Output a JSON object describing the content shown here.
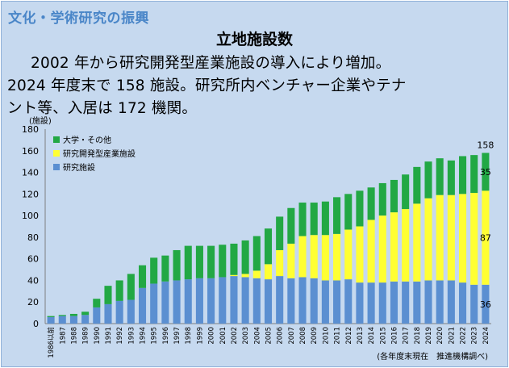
{
  "header": {
    "section_title": "文化・学術研究の振興",
    "title": "立地施設数"
  },
  "description": {
    "line1": "2002 年から研究開発型産業施設の導入により増加。",
    "line2": "2024 年度末で 158 施設。研究所内ベンチャー企業やテナ",
    "line3": "ント等、入居は 172 機関。"
  },
  "chart_data": {
    "type": "bar",
    "stacked": true,
    "title": "",
    "ylabel": "(施設)",
    "xlabel": "",
    "ylim": [
      0,
      180
    ],
    "yticks": [
      0,
      20,
      40,
      60,
      80,
      100,
      120,
      140,
      160,
      180
    ],
    "categories": [
      "1986以前",
      "1987",
      "1988",
      "1989",
      "1990",
      "1991",
      "1992",
      "1993",
      "1994",
      "1995",
      "1996",
      "1997",
      "1998",
      "1999",
      "2000",
      "2001",
      "2002",
      "2003",
      "2004",
      "2005",
      "2006",
      "2007",
      "2008",
      "2009",
      "2010",
      "2011",
      "2012",
      "2013",
      "2014",
      "2015",
      "2016",
      "2017",
      "2018",
      "2019",
      "2020",
      "2021",
      "2022",
      "2023",
      "2024"
    ],
    "series": [
      {
        "name": "研究施設",
        "color": "#5b8fd1",
        "values": [
          6,
          7,
          7,
          8,
          15,
          18,
          21,
          22,
          33,
          37,
          39,
          40,
          41,
          42,
          42,
          43,
          44,
          43,
          42,
          41,
          44,
          42,
          43,
          42,
          40,
          40,
          41,
          38,
          38,
          38,
          39,
          39,
          39,
          40,
          40,
          40,
          38,
          36,
          36
        ]
      },
      {
        "name": "研究開発型産業施設",
        "color": "#ffff33",
        "values": [
          0,
          0,
          0,
          0,
          0,
          0,
          0,
          0,
          0,
          0,
          0,
          0,
          0,
          0,
          0,
          0,
          1,
          3,
          7,
          14,
          24,
          32,
          38,
          40,
          42,
          43,
          46,
          52,
          58,
          62,
          64,
          67,
          72,
          76,
          79,
          79,
          82,
          85,
          87
        ]
      },
      {
        "name": "大学・その他",
        "color": "#22a844",
        "values": [
          1,
          1,
          2,
          3,
          8,
          17,
          19,
          24,
          21,
          24,
          24,
          28,
          31,
          30,
          30,
          30,
          29,
          31,
          32,
          33,
          31,
          33,
          31,
          30,
          31,
          34,
          33,
          33,
          30,
          30,
          30,
          32,
          34,
          34,
          34,
          32,
          35,
          35,
          35
        ]
      }
    ],
    "totals": [
      7,
      8,
      9,
      11,
      23,
      35,
      40,
      46,
      54,
      61,
      63,
      68,
      72,
      72,
      72,
      73,
      74,
      77,
      81,
      88,
      99,
      107,
      112,
      112,
      113,
      117,
      120,
      123,
      126,
      130,
      133,
      138,
      145,
      150,
      153,
      151,
      155,
      156,
      158
    ],
    "data_labels": [
      {
        "series": "大学・その他",
        "category": "2024",
        "text": "158"
      },
      {
        "series": "大学・その他",
        "category": "2024",
        "text": "35"
      },
      {
        "series": "研究開発型産業施設",
        "category": "2024",
        "text": "87"
      },
      {
        "series": "研究施設",
        "category": "2024",
        "text": "36"
      }
    ],
    "legend": [
      "大学・その他",
      "研究開発型産業施設",
      "研究施設"
    ],
    "legend_position": "top-left",
    "source_note": "(各年度末現在　推進機構調べ)",
    "grid": false
  }
}
